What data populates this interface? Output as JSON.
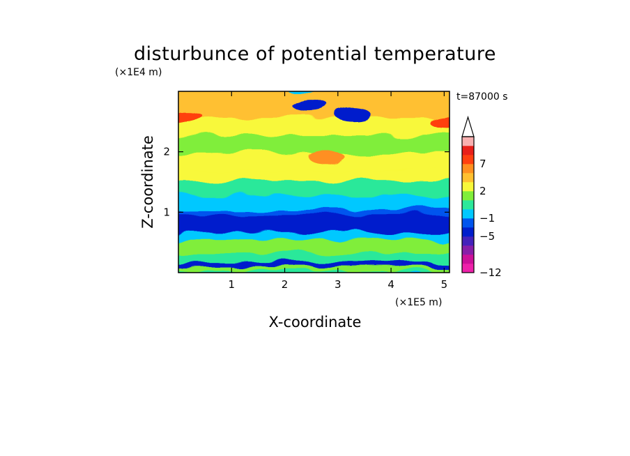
{
  "chart_data": {
    "type": "heatmap",
    "title": "disturbunce of potential temperature",
    "xlabel": "X-coordinate",
    "ylabel": "Z-coordinate",
    "x_unit": "(×1E5 m)",
    "y_unit": "(×1E4 m)",
    "time_label": "t=87000 s",
    "xlim": [
      0,
      5.1
    ],
    "ylim": [
      0,
      3.0
    ],
    "x_ticks": [
      1,
      2,
      3,
      4,
      5
    ],
    "y_ticks": [
      1,
      2
    ],
    "colorbar": {
      "levels": [
        -12,
        -10,
        -8,
        -6,
        -5,
        -3,
        -1,
        0,
        1,
        2,
        4,
        5,
        7,
        9,
        11
      ],
      "labels": [
        {
          "text": "7",
          "value": 7
        },
        {
          "text": "2",
          "value": 2
        },
        {
          "text": "−1",
          "value": -1
        },
        {
          "text": "−5",
          "value": -5
        },
        {
          "text": "−12",
          "value": -12
        }
      ],
      "colors": [
        "#ee22aa",
        "#cc1199",
        "#881ea8",
        "#4422bb",
        "#001ecc",
        "#0055ee",
        "#00c8ff",
        "#2ce89a",
        "#80ee3a",
        "#f8f83a",
        "#ffc030",
        "#ff8f20",
        "#ff4010",
        "#e8201a",
        "#f8b0b0"
      ],
      "extend": "max"
    },
    "bands": [
      {
        "z": [
          0.0,
          0.06
        ],
        "value": 0.5
      },
      {
        "z": [
          0.06,
          0.12
        ],
        "value": 1.5
      },
      {
        "z": [
          0.12,
          0.2
        ],
        "value": -4
      },
      {
        "z": [
          0.2,
          0.38
        ],
        "value": 0.5
      },
      {
        "z": [
          0.38,
          0.58
        ],
        "value": 1.5
      },
      {
        "z": [
          0.58,
          0.7
        ],
        "value": -1
      },
      {
        "z": [
          0.7,
          1.0
        ],
        "value": -4
      },
      {
        "z": [
          1.0,
          1.08
        ],
        "value": -2
      },
      {
        "z": [
          1.08,
          1.3
        ],
        "value": -1
      },
      {
        "z": [
          1.3,
          1.55
        ],
        "value": 0.5
      },
      {
        "z": [
          1.55,
          1.75
        ],
        "value": 2
      },
      {
        "z": [
          1.75,
          2.0
        ],
        "value": 3
      },
      {
        "z": [
          2.0,
          2.3
        ],
        "value": 1.5
      },
      {
        "z": [
          2.3,
          2.6
        ],
        "value": 3
      },
      {
        "z": [
          2.6,
          3.0
        ],
        "value": 4
      }
    ],
    "features": [
      {
        "x": 3.3,
        "z": 2.6,
        "value": -4
      },
      {
        "x": 2.5,
        "z": 2.75,
        "value": -4
      },
      {
        "x": 0.1,
        "z": 2.6,
        "value": 7
      },
      {
        "x": 5.05,
        "z": 2.5,
        "value": 7
      },
      {
        "x": 2.8,
        "z": 1.9,
        "value": 5
      },
      {
        "x": 4.4,
        "z": 0.85,
        "value": -5
      }
    ]
  }
}
